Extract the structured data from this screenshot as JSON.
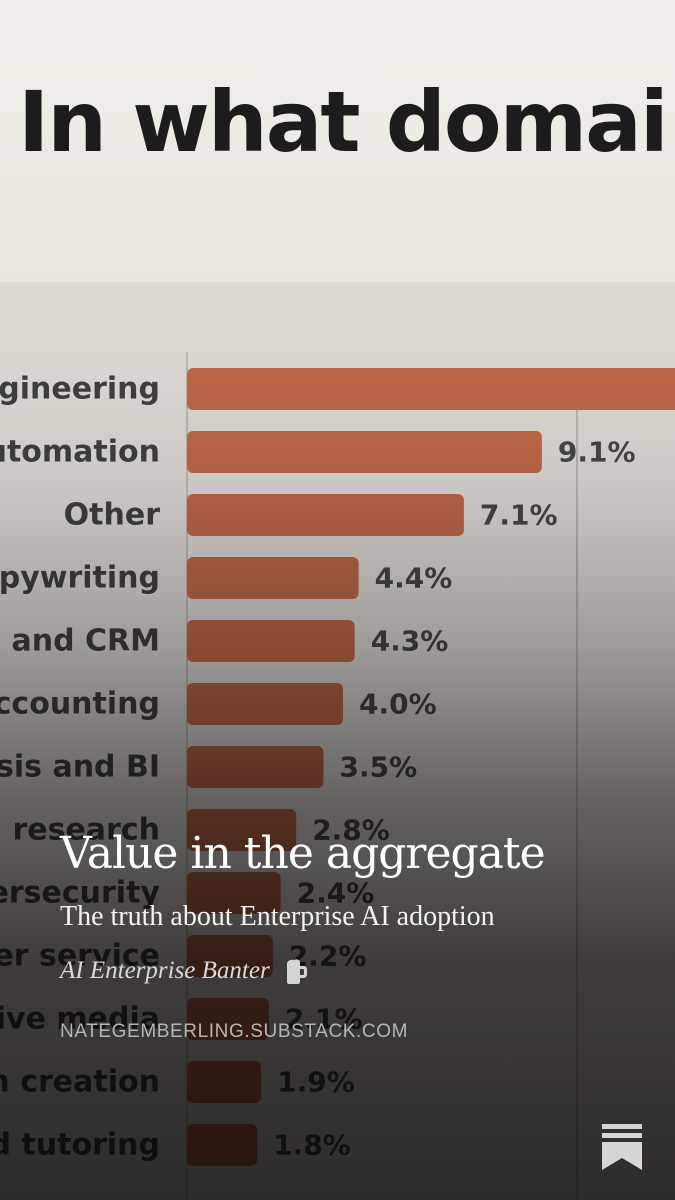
{
  "chart_heading": "In what domai",
  "chart_data": {
    "type": "bar",
    "orientation": "horizontal",
    "categories": [
      "ngineering",
      "automation",
      "Other",
      "opywriting",
      "s and CRM",
      "accounting",
      "ysis and BI",
      "c research",
      "ersecurity",
      "ner service",
      "tive media",
      "on creation",
      "nd tutoring"
    ],
    "values": [
      null,
      9.1,
      7.1,
      4.4,
      4.3,
      4.0,
      3.5,
      2.8,
      2.4,
      2.2,
      2.1,
      1.9,
      1.8
    ],
    "value_labels": [
      "",
      "9.1%",
      "7.1%",
      "4.4%",
      "4.3%",
      "4.0%",
      "3.5%",
      "2.8%",
      "2.4%",
      "2.2%",
      "2.1%",
      "1.9%",
      "1.8%"
    ],
    "bar_color": "#c0684a",
    "grid": true
  },
  "post": {
    "title": "Value in the aggregate",
    "subtitle": "The truth about Enterprise AI adoption",
    "author": "AI Enterprise Banter",
    "domain": "NATEGEMBERLING.SUBSTACK.COM"
  },
  "icons": {
    "author": "beer-mug-icon",
    "corner": "substack-bookmark-icon"
  }
}
